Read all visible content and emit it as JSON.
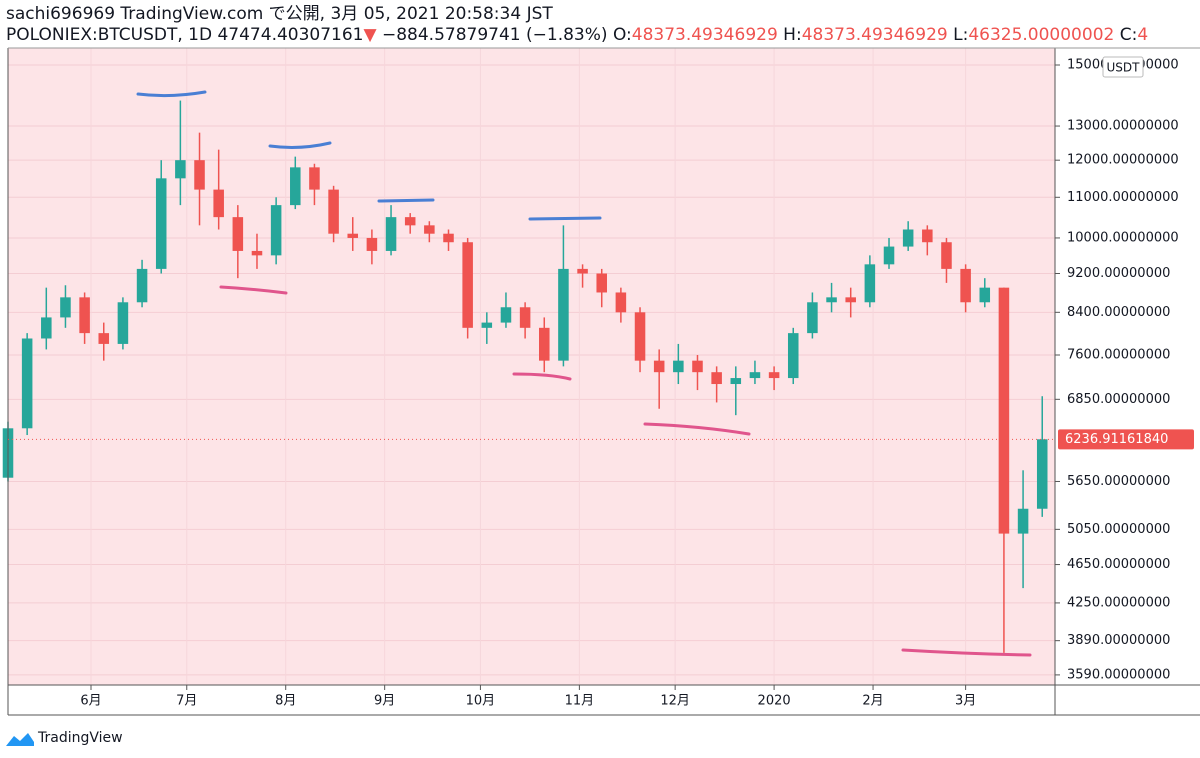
{
  "header": {
    "line1": "sachi696969 TradingView.com で公開, 3月 05, 2021 20:58:34 JST",
    "symbol": "POLONIEX:BTCUSDT, 1D",
    "price": "47474.40307161",
    "arrow": "▼",
    "change": "−884.57879741 (−1.83%)",
    "o_label": "O:",
    "o": "48373.49346929",
    "h_label": "H:",
    "h": "48373.49346929",
    "l_label": "L:",
    "l": "46325.00000002",
    "c_label": "C:",
    "c": "4"
  },
  "chart_data": {
    "type": "candlestick",
    "log_scale": true,
    "grid": true,
    "up_color": "#26a69a",
    "down_color": "#ef5350",
    "currency": "USDT",
    "xlim": [
      0,
      328
    ],
    "xticks": [
      {
        "value": 26,
        "label": "6月"
      },
      {
        "value": 56,
        "label": "7月"
      },
      {
        "value": 87,
        "label": "8月"
      },
      {
        "value": 118,
        "label": "9月"
      },
      {
        "value": 148,
        "label": "10月"
      },
      {
        "value": 179,
        "label": "11月"
      },
      {
        "value": 209,
        "label": "12月"
      },
      {
        "value": 240,
        "label": "2020"
      },
      {
        "value": 271,
        "label": "2月"
      },
      {
        "value": 300,
        "label": "3月"
      }
    ],
    "ylim": [
      3506,
      15610
    ],
    "yticks": [
      {
        "value": 3590,
        "label": "3590.00000000"
      },
      {
        "value": 3890,
        "label": "3890.00000000"
      },
      {
        "value": 4250,
        "label": "4250.00000000"
      },
      {
        "value": 4650,
        "label": "4650.00000000"
      },
      {
        "value": 5050,
        "label": "5050.00000000"
      },
      {
        "value": 5650,
        "label": "5650.00000000"
      },
      {
        "value": 6850,
        "label": "6850.00000000"
      },
      {
        "value": 7600,
        "label": "7600.00000000"
      },
      {
        "value": 8400,
        "label": "8400.00000000"
      },
      {
        "value": 9200,
        "label": "9200.00000000"
      },
      {
        "value": 10000,
        "label": "10000.00000000"
      },
      {
        "value": 11000,
        "label": "11000.00000000"
      },
      {
        "value": 12000,
        "label": "12000.00000000"
      },
      {
        "value": 13000,
        "label": "13000.00000000"
      },
      {
        "value": 15000,
        "label": "15000.00000000"
      }
    ],
    "last_price": {
      "value": 6236.9116184,
      "label": "6236.91161840"
    },
    "x": [
      0,
      6,
      12,
      18,
      24,
      30,
      36,
      42,
      48,
      54,
      60,
      66,
      72,
      78,
      84,
      90,
      96,
      102,
      108,
      114,
      120,
      126,
      132,
      138,
      144,
      150,
      156,
      162,
      168,
      174,
      180,
      186,
      192,
      198,
      204,
      210,
      216,
      222,
      228,
      234,
      240,
      246,
      252,
      258,
      264,
      270,
      276,
      282,
      288,
      294,
      300,
      306,
      312,
      318,
      324
    ],
    "open": [
      5700,
      6400,
      7900,
      8300,
      8700,
      8000,
      7800,
      8600,
      9300,
      11500,
      12000,
      11200,
      10500,
      9700,
      9600,
      10800,
      11800,
      11200,
      10100,
      10000,
      9700,
      10500,
      10300,
      10100,
      9900,
      8100,
      8200,
      8500,
      8100,
      7500,
      9300,
      9200,
      8800,
      8400,
      7500,
      7300,
      7500,
      7300,
      7100,
      7200,
      7300,
      7200,
      8000,
      8600,
      8700,
      8600,
      9400,
      9800,
      10200,
      9900,
      9300,
      8600,
      8900,
      5000,
      5300
    ],
    "high": [
      6500,
      8000,
      8900,
      8950,
      8800,
      8200,
      8700,
      9500,
      12000,
      13800,
      12800,
      12300,
      10800,
      10100,
      11000,
      12100,
      11900,
      11300,
      10500,
      10200,
      10800,
      10600,
      10400,
      10200,
      10000,
      8400,
      8800,
      8600,
      8300,
      10300,
      9400,
      9300,
      8900,
      8500,
      7700,
      7800,
      7600,
      7400,
      7400,
      7500,
      7400,
      8100,
      8800,
      9000,
      8900,
      9600,
      10000,
      10400,
      10300,
      10000,
      9400,
      9100,
      8900,
      5800,
      6900
    ],
    "low": [
      5650,
      6300,
      7700,
      8100,
      7800,
      7500,
      7700,
      8500,
      9200,
      10800,
      10300,
      10200,
      9100,
      9300,
      9400,
      10700,
      10800,
      9900,
      9700,
      9400,
      9600,
      10100,
      9900,
      9700,
      7900,
      7800,
      8100,
      7900,
      7300,
      7400,
      8900,
      8500,
      8200,
      7300,
      6700,
      7100,
      7000,
      6800,
      6600,
      7100,
      7000,
      7100,
      7900,
      8400,
      8300,
      8500,
      9300,
      9700,
      9600,
      9000,
      8400,
      8500,
      3780,
      4400,
      5200
    ],
    "close": [
      6400,
      7900,
      8300,
      8700,
      8000,
      7800,
      8600,
      9300,
      11500,
      12000,
      11200,
      10500,
      9700,
      9600,
      10800,
      11800,
      11200,
      10100,
      10000,
      9700,
      10500,
      10300,
      10100,
      9900,
      8100,
      8200,
      8500,
      8100,
      7500,
      9300,
      9200,
      8800,
      8400,
      7500,
      7300,
      7500,
      7300,
      7100,
      7200,
      7300,
      7200,
      8000,
      8600,
      8700,
      8600,
      9400,
      9800,
      10200,
      9900,
      9300,
      8600,
      8900,
      5000,
      5300,
      6237
    ]
  },
  "footer": {
    "brand": "TradingView"
  }
}
